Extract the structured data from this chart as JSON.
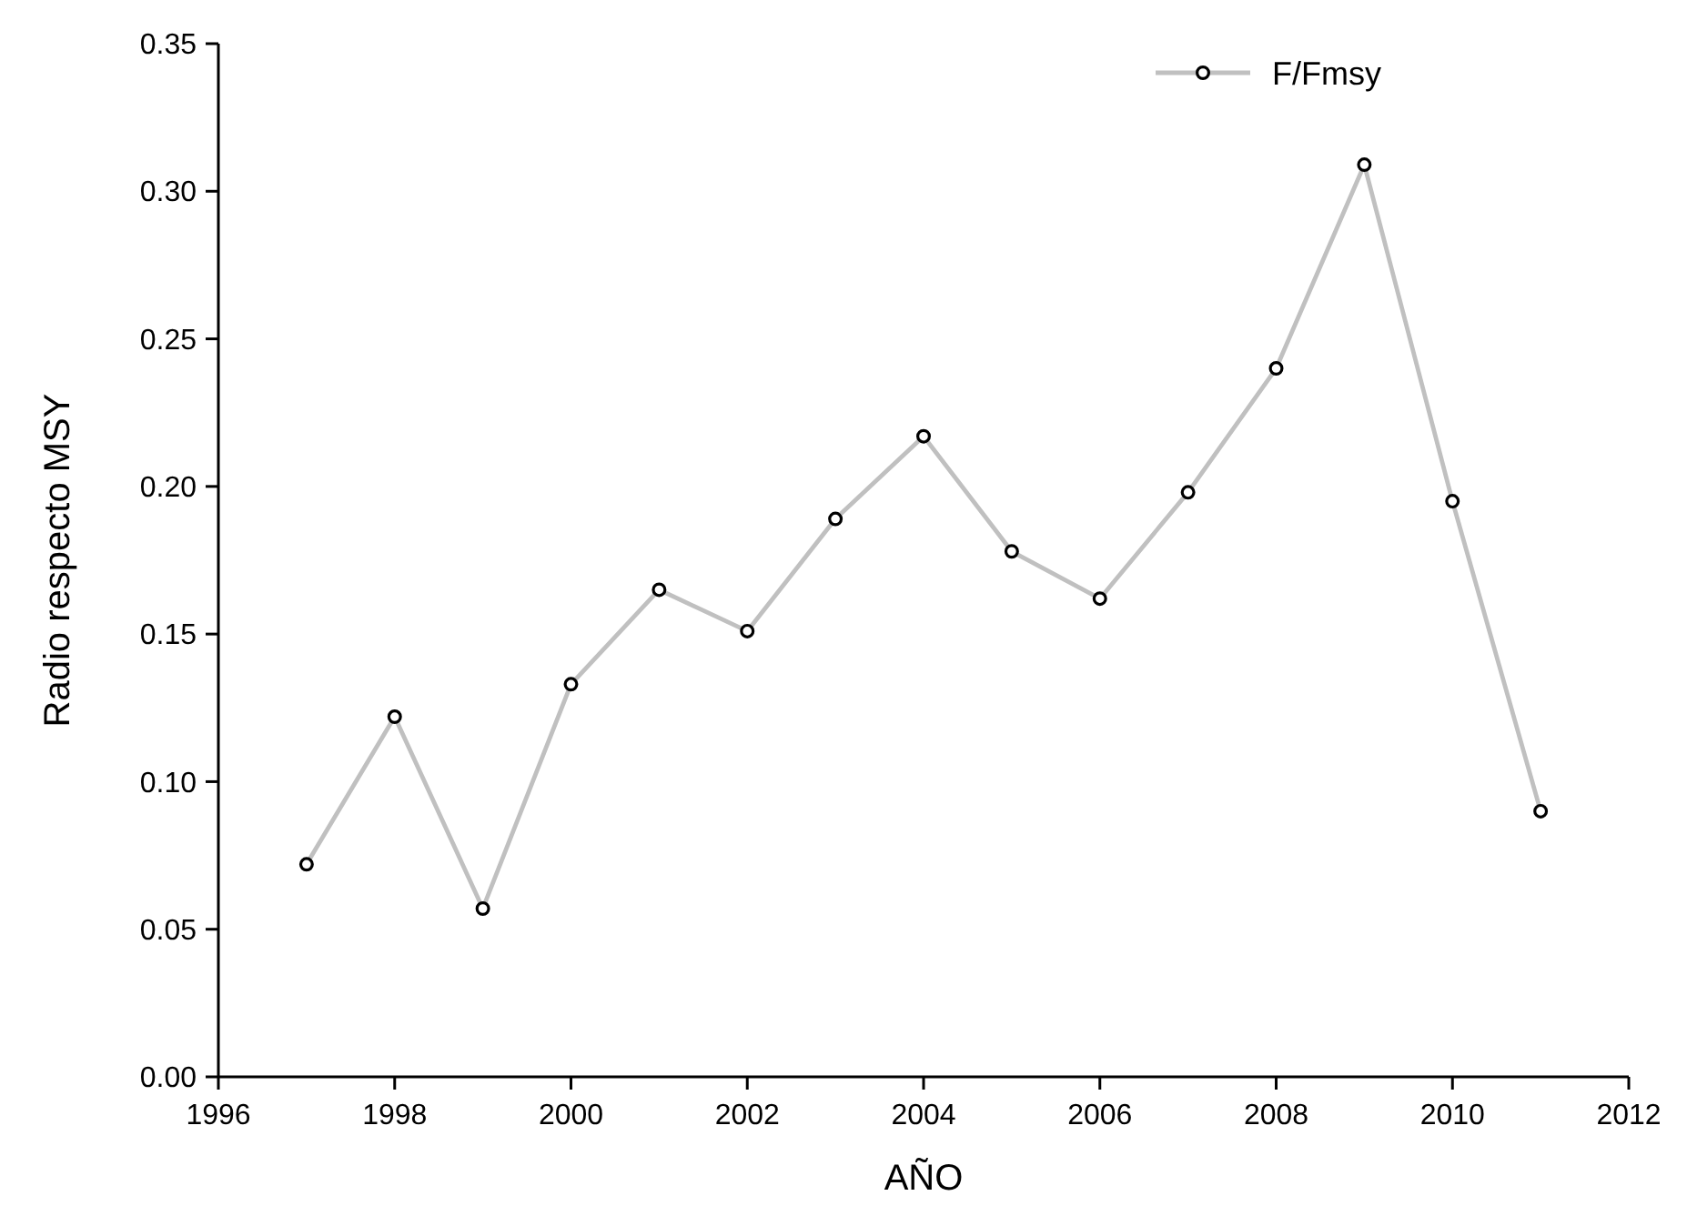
{
  "chart_data": {
    "type": "line",
    "xlabel": "AÑO",
    "ylabel": "Radio respecto MSY",
    "x": [
      1997,
      1998,
      1999,
      2000,
      2001,
      2002,
      2003,
      2004,
      2005,
      2006,
      2007,
      2008,
      2009,
      2010,
      2011
    ],
    "series": [
      {
        "name": "F/Fmsy",
        "color": "#c0c0c0",
        "values": [
          0.072,
          0.122,
          0.057,
          0.133,
          0.165,
          0.151,
          0.189,
          0.217,
          0.178,
          0.162,
          0.198,
          0.24,
          0.309,
          0.195,
          0.09
        ]
      }
    ],
    "xlim": [
      1996,
      2012
    ],
    "xticks": [
      1996,
      1998,
      2000,
      2002,
      2004,
      2006,
      2008,
      2010,
      2012
    ],
    "ylim": [
      0,
      0.35
    ],
    "yticks": [
      {
        "value": 0,
        "label": "0.00"
      },
      {
        "value": 0.05,
        "label": "0.05"
      },
      {
        "value": 0.1,
        "label": "0.10"
      },
      {
        "value": 0.15,
        "label": "0.15"
      },
      {
        "value": 0.2,
        "label": "0.20"
      },
      {
        "value": 0.25,
        "label": "0.25"
      },
      {
        "value": 0.3,
        "label": "0.30"
      },
      {
        "value": 0.35,
        "label": "0.35"
      }
    ],
    "marker": "circle",
    "legend": "top right",
    "grid": false
  }
}
